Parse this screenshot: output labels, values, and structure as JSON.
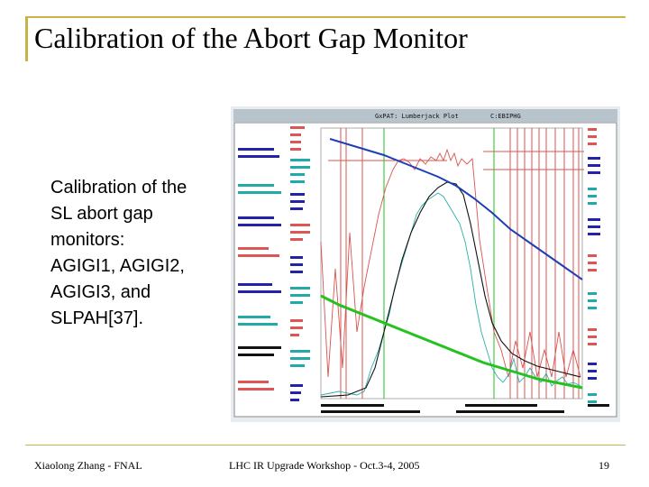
{
  "slide": {
    "title": "Calibration of the Abort Gap Monitor",
    "body": "Calibration of the\nSL abort gap\nmonitors:\nAGIGI1, AGIGI2,\nAGIGI3, and\nSLPAH[37].",
    "footer_left": "Xiaolong Zhang - FNAL",
    "footer_center": "LHC IR Upgrade Workshop - Oct.3-4, 2005",
    "page_number": "19"
  },
  "plot_window": {
    "title": "GxPAT: Lumberjack Plot",
    "subtitle": "C:EBIPHG",
    "colors": {
      "window_bg": "#000000",
      "frame": "#c8d0d8",
      "blue": "#1c3fb5",
      "green": "#22c21f",
      "red": "#d9534f",
      "cyan": "#2ab0a8",
      "dark": "#111111"
    }
  }
}
